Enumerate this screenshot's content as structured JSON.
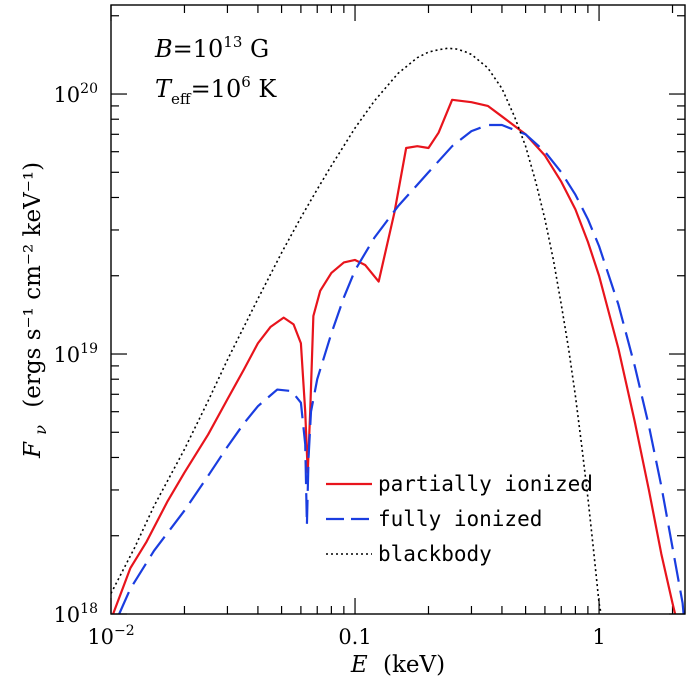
{
  "chart_data": {
    "type": "line",
    "xlabel": {
      "var": "E",
      "unit": "(keV)"
    },
    "ylabel": {
      "var": "F",
      "sub": "ν",
      "unit": "(ergs s⁻¹ cm⁻² keV⁻¹)"
    },
    "xscale": "log",
    "yscale": "log",
    "xlim": [
      0.01,
      2.25
    ],
    "ylim": [
      1e+18,
      2.2e+20
    ],
    "x_ticks": [
      {
        "value": 0.01,
        "base": "10",
        "exp": "−2"
      },
      {
        "value": 0.1,
        "base": "0.1",
        "exp": ""
      },
      {
        "value": 1,
        "base": "1",
        "exp": ""
      }
    ],
    "y_ticks": [
      {
        "value": 1e+18,
        "base": "10",
        "exp": "18"
      },
      {
        "value": 1e+19,
        "base": "10",
        "exp": "19"
      },
      {
        "value": 1e+20,
        "base": "10",
        "exp": "20"
      }
    ],
    "annotations": [
      {
        "parts": [
          [
            "B",
            "i"
          ],
          [
            "=10",
            "n"
          ],
          [
            "13",
            "sup"
          ],
          [
            " G",
            "n"
          ]
        ]
      },
      {
        "parts": [
          [
            "T",
            "i"
          ],
          [
            "eff",
            "sub"
          ],
          [
            "=10",
            "n"
          ],
          [
            "6",
            "sup"
          ],
          [
            " K",
            "n"
          ]
        ]
      }
    ],
    "legend_position": "bottom-right",
    "series": [
      {
        "name": "partially ionized",
        "color": "#e8141c",
        "dash": "solid",
        "points": [
          [
            0.0102,
            1e+18
          ],
          [
            0.012,
            1.5e+18
          ],
          [
            0.014,
            1.9e+18
          ],
          [
            0.017,
            2.7e+18
          ],
          [
            0.02,
            3.5e+18
          ],
          [
            0.025,
            4.9e+18
          ],
          [
            0.03,
            6.7e+18
          ],
          [
            0.035,
            8.7e+18
          ],
          [
            0.04,
            1.1e+19
          ],
          [
            0.045,
            1.27e+19
          ],
          [
            0.051,
            1.38e+19
          ],
          [
            0.056,
            1.3e+19
          ],
          [
            0.06,
            1.1e+19
          ],
          [
            0.0625,
            6e+18
          ],
          [
            0.064,
            3.5e+18
          ],
          [
            0.0655,
            6e+18
          ],
          [
            0.0675,
            1.4e+19
          ],
          [
            0.072,
            1.75e+19
          ],
          [
            0.08,
            2.05e+19
          ],
          [
            0.09,
            2.25e+19
          ],
          [
            0.1,
            2.3e+19
          ],
          [
            0.11,
            2.2e+19
          ],
          [
            0.125,
            1.9e+19
          ],
          [
            0.145,
            3.5e+19
          ],
          [
            0.162,
            6.2e+19
          ],
          [
            0.18,
            6.3e+19
          ],
          [
            0.2,
            6.2e+19
          ],
          [
            0.22,
            7.1e+19
          ],
          [
            0.25,
            9.5e+19
          ],
          [
            0.3,
            9.3e+19
          ],
          [
            0.35,
            9e+19
          ],
          [
            0.4,
            8.2e+19
          ],
          [
            0.5,
            7e+19
          ],
          [
            0.6,
            5.8e+19
          ],
          [
            0.7,
            4.6e+19
          ],
          [
            0.8,
            3.6e+19
          ],
          [
            0.9,
            2.7e+19
          ],
          [
            1.0,
            2e+19
          ],
          [
            1.2,
            1.05e+19
          ],
          [
            1.4,
            5.5e+18
          ],
          [
            1.6,
            3e+18
          ],
          [
            1.8,
            1.7e+18
          ],
          [
            2.0,
            1.1e+18
          ],
          [
            2.05,
            1e+18
          ]
        ]
      },
      {
        "name": "fully ionized",
        "color": "#1a3de0",
        "dash": "long-dash",
        "points": [
          [
            0.0108,
            1e+18
          ],
          [
            0.012,
            1.25e+18
          ],
          [
            0.015,
            1.75e+18
          ],
          [
            0.02,
            2.5e+18
          ],
          [
            0.025,
            3.4e+18
          ],
          [
            0.03,
            4.4e+18
          ],
          [
            0.035,
            5.4e+18
          ],
          [
            0.04,
            6.3e+18
          ],
          [
            0.048,
            7.3e+18
          ],
          [
            0.055,
            7.2e+18
          ],
          [
            0.06,
            6.5e+18
          ],
          [
            0.0625,
            4.5e+18
          ],
          [
            0.0635,
            2.2e+18
          ],
          [
            0.0645,
            4e+18
          ],
          [
            0.066,
            6e+18
          ],
          [
            0.07,
            8e+18
          ],
          [
            0.08,
            1.2e+19
          ],
          [
            0.09,
            1.65e+19
          ],
          [
            0.1,
            2.1e+19
          ],
          [
            0.12,
            2.8e+19
          ],
          [
            0.15,
            3.7e+19
          ],
          [
            0.2,
            5e+19
          ],
          [
            0.25,
            6.3e+19
          ],
          [
            0.3,
            7.2e+19
          ],
          [
            0.35,
            7.6e+19
          ],
          [
            0.4,
            7.6e+19
          ],
          [
            0.5,
            7e+19
          ],
          [
            0.6,
            6e+19
          ],
          [
            0.7,
            5e+19
          ],
          [
            0.8,
            4.1e+19
          ],
          [
            0.9,
            3.3e+19
          ],
          [
            1.0,
            2.6e+19
          ],
          [
            1.2,
            1.55e+19
          ],
          [
            1.4,
            9e+18
          ],
          [
            1.6,
            5.3e+18
          ],
          [
            1.8,
            3.1e+18
          ],
          [
            2.0,
            1.8e+18
          ],
          [
            2.2,
            1.1e+18
          ],
          [
            2.22,
            1e+18
          ]
        ]
      },
      {
        "name": "blackbody",
        "color": "#000000",
        "dash": "dotted",
        "points": [
          [
            0.01,
            1.2e+18
          ],
          [
            0.0125,
            1.8e+18
          ],
          [
            0.015,
            2.6e+18
          ],
          [
            0.02,
            4.3e+18
          ],
          [
            0.025,
            6.6e+18
          ],
          [
            0.03,
            9.5e+18
          ],
          [
            0.04,
            1.63e+19
          ],
          [
            0.05,
            2.45e+19
          ],
          [
            0.06,
            3.35e+19
          ],
          [
            0.07,
            4.3e+19
          ],
          [
            0.08,
            5.3e+19
          ],
          [
            0.1,
            7.4e+19
          ],
          [
            0.12,
            9.4e+19
          ],
          [
            0.15,
            1.2e+20
          ],
          [
            0.18,
            1.38e+20
          ],
          [
            0.2,
            1.45e+20
          ],
          [
            0.22,
            1.48e+20
          ],
          [
            0.24,
            1.5e+20
          ],
          [
            0.26,
            1.49e+20
          ],
          [
            0.28,
            1.46e+20
          ],
          [
            0.3,
            1.42e+20
          ],
          [
            0.35,
            1.26e+20
          ],
          [
            0.4,
            1.05e+20
          ],
          [
            0.45,
            8.2e+19
          ],
          [
            0.5,
            6.3e+19
          ],
          [
            0.55,
            4.6e+19
          ],
          [
            0.6,
            3.3e+19
          ],
          [
            0.65,
            2.3e+19
          ],
          [
            0.7,
            1.55e+19
          ],
          [
            0.75,
            1.05e+19
          ],
          [
            0.8,
            6.9e+18
          ],
          [
            0.85,
            4.4e+18
          ],
          [
            0.9,
            2.8e+18
          ],
          [
            0.95,
            1.75e+18
          ],
          [
            1.0,
            1.1e+18
          ],
          [
            1.02,
            1e+18
          ]
        ]
      }
    ]
  }
}
